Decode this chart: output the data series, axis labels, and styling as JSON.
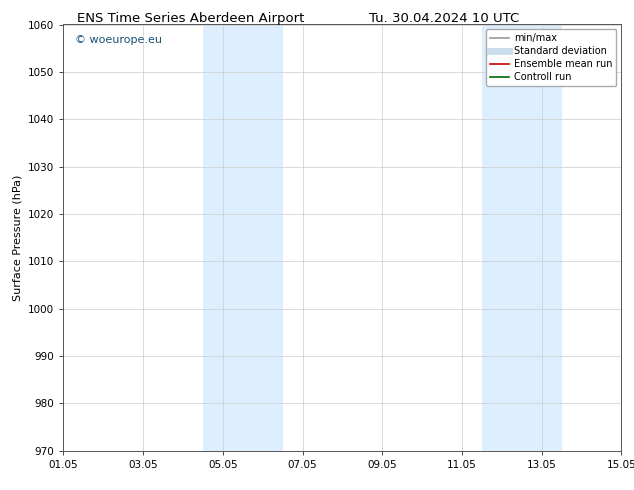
{
  "title_left": "ENS Time Series Aberdeen Airport",
  "title_right": "Tu. 30.04.2024 10 UTC",
  "ylabel": "Surface Pressure (hPa)",
  "ylim": [
    970,
    1060
  ],
  "yticks": [
    970,
    980,
    990,
    1000,
    1010,
    1020,
    1030,
    1040,
    1050,
    1060
  ],
  "xtick_labels": [
    "01.05",
    "03.05",
    "05.05",
    "07.05",
    "09.05",
    "11.05",
    "13.05",
    "15.05"
  ],
  "xtick_positions_days": [
    0,
    2,
    4,
    6,
    8,
    10,
    12,
    14
  ],
  "xdays_total": 14,
  "shaded_regions": [
    {
      "xstart_day": 3.5,
      "xend_day": 5.5
    },
    {
      "xstart_day": 10.5,
      "xend_day": 12.5
    }
  ],
  "shade_color": "#ddeeff",
  "watermark_text": "© woeurope.eu",
  "watermark_color": "#1a5276",
  "legend_entries": [
    {
      "label": "min/max",
      "color": "#999999",
      "lw": 1.2
    },
    {
      "label": "Standard deviation",
      "color": "#ccddee",
      "lw": 5
    },
    {
      "label": "Ensemble mean run",
      "color": "#cc0000",
      "lw": 1.2
    },
    {
      "label": "Controll run",
      "color": "#006600",
      "lw": 1.2
    }
  ],
  "background_color": "#ffffff",
  "grid_color": "#cccccc",
  "title_fontsize": 9.5,
  "tick_fontsize": 7.5,
  "ylabel_fontsize": 8,
  "watermark_fontsize": 8,
  "legend_fontsize": 7
}
